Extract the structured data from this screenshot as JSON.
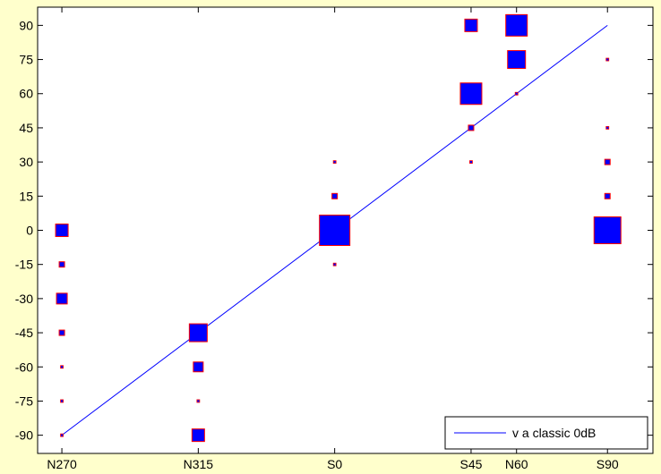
{
  "chart_data": {
    "type": "scatter",
    "title": "",
    "xlabel": "",
    "ylabel": "",
    "x_categories": [
      "N270",
      "N315",
      "S0",
      "S45",
      "N60",
      "S90"
    ],
    "x_positions": [
      -90,
      -45,
      0,
      45,
      60,
      90
    ],
    "xlim": [
      -98,
      105
    ],
    "ylim": [
      -98,
      98
    ],
    "y_ticks": [
      90,
      75,
      60,
      45,
      30,
      15,
      0,
      -15,
      -30,
      -45,
      -60,
      -75,
      -90
    ],
    "grid": false,
    "colors": {
      "marker_fill": "#0000ff",
      "marker_edge": "#ff0000",
      "line": "#0000ff",
      "background": "#ffffcc"
    },
    "points": [
      {
        "x": -90,
        "y": 0,
        "size": 14
      },
      {
        "x": -90,
        "y": -15,
        "size": 6
      },
      {
        "x": -90,
        "y": -30,
        "size": 12
      },
      {
        "x": -90,
        "y": -45,
        "size": 6
      },
      {
        "x": -90,
        "y": -60,
        "size": 3
      },
      {
        "x": -90,
        "y": -75,
        "size": 3
      },
      {
        "x": -90,
        "y": -90,
        "size": 3
      },
      {
        "x": -45,
        "y": -45,
        "size": 20
      },
      {
        "x": -45,
        "y": -60,
        "size": 11
      },
      {
        "x": -45,
        "y": -75,
        "size": 3
      },
      {
        "x": -45,
        "y": -90,
        "size": 14
      },
      {
        "x": 0,
        "y": 30,
        "size": 3
      },
      {
        "x": 0,
        "y": 15,
        "size": 6
      },
      {
        "x": 0,
        "y": 0,
        "size": 34
      },
      {
        "x": 0,
        "y": -15,
        "size": 3
      },
      {
        "x": 45,
        "y": 90,
        "size": 14
      },
      {
        "x": 45,
        "y": 60,
        "size": 24
      },
      {
        "x": 45,
        "y": 45,
        "size": 6
      },
      {
        "x": 45,
        "y": 30,
        "size": 3
      },
      {
        "x": 60,
        "y": 90,
        "size": 24
      },
      {
        "x": 60,
        "y": 75,
        "size": 20
      },
      {
        "x": 60,
        "y": 60,
        "size": 3
      },
      {
        "x": 90,
        "y": 75,
        "size": 3
      },
      {
        "x": 90,
        "y": 45,
        "size": 3
      },
      {
        "x": 90,
        "y": 30,
        "size": 6
      },
      {
        "x": 90,
        "y": 15,
        "size": 6
      },
      {
        "x": 90,
        "y": 0,
        "size": 30
      }
    ],
    "series": [
      {
        "name": "v a classic 0dB",
        "x": [
          -90,
          90
        ],
        "y": [
          -90,
          90
        ]
      }
    ],
    "legend": {
      "placement": "bottom-right",
      "entries": [
        "v a classic 0dB"
      ]
    }
  }
}
